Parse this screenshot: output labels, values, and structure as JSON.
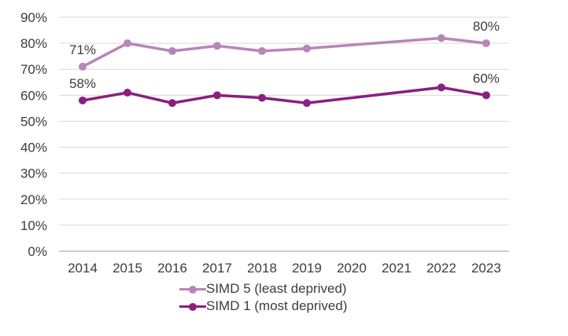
{
  "chart_data": {
    "type": "line",
    "categories": [
      "2014",
      "2015",
      "2016",
      "2017",
      "2018",
      "2019",
      "2020",
      "2021",
      "2022",
      "2023"
    ],
    "series": [
      {
        "name": "SIMD 5 (least deprived)",
        "color": "#b786b8",
        "values": [
          71,
          80,
          77,
          79,
          77,
          78,
          null,
          null,
          82,
          80
        ]
      },
      {
        "name": "SIMD 1 (most deprived)",
        "color": "#8b1e80",
        "values": [
          58,
          61,
          57,
          60,
          59,
          57,
          null,
          null,
          63,
          60
        ]
      }
    ],
    "ylim": [
      0,
      90
    ],
    "y_ticks": [
      {
        "v": 0,
        "label": "0%"
      },
      {
        "v": 10,
        "label": "10%"
      },
      {
        "v": 20,
        "label": "20%"
      },
      {
        "v": 30,
        "label": "30%"
      },
      {
        "v": 40,
        "label": "40%"
      },
      {
        "v": 50,
        "label": "50%"
      },
      {
        "v": 60,
        "label": "60%"
      },
      {
        "v": 70,
        "label": "70%"
      },
      {
        "v": 80,
        "label": "80%"
      },
      {
        "v": 90,
        "label": "90%"
      }
    ],
    "grid": "horizontal",
    "legend_position": "bottom-center",
    "annotations": [
      {
        "text": "71%",
        "series": 0,
        "index": 0
      },
      {
        "text": "58%",
        "series": 1,
        "index": 0
      },
      {
        "text": "80%",
        "series": 0,
        "index": 9
      },
      {
        "text": "60%",
        "series": 1,
        "index": 9
      }
    ]
  },
  "colors": {
    "background": "#ffffff",
    "grid": "#d9d9d9",
    "axis": "#bfbfbf",
    "text": "#3c3c3c"
  }
}
